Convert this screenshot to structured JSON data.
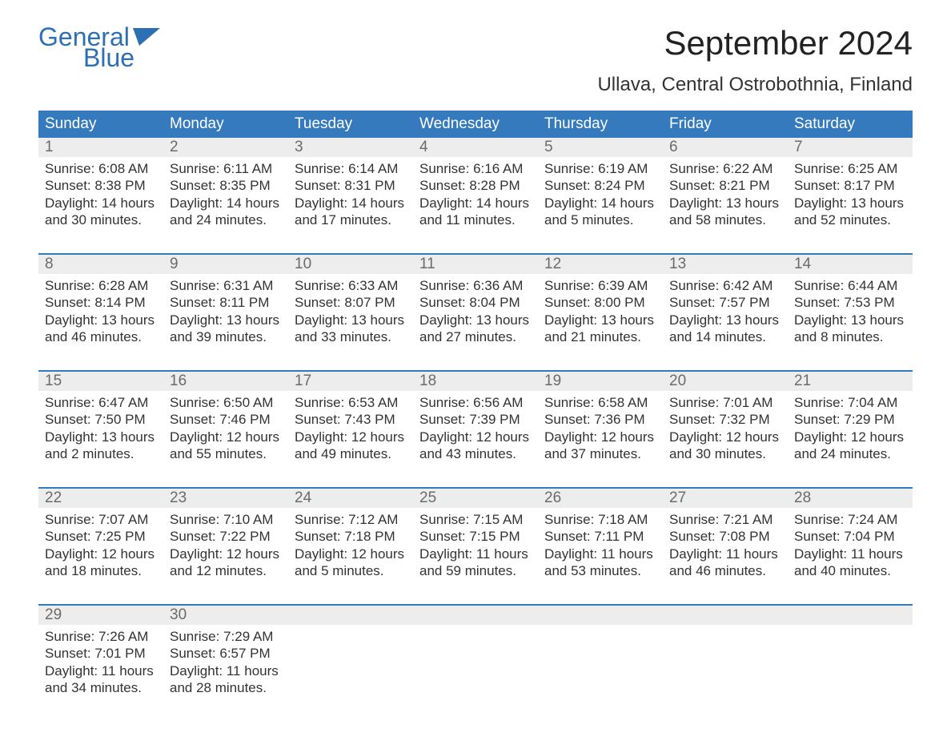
{
  "logo": {
    "word1": "General",
    "word2": "Blue"
  },
  "title": "September 2024",
  "location": "Ullava, Central Ostrobothnia, Finland",
  "colors": {
    "header_bg": "#357abd",
    "header_text": "#ffffff",
    "daynum_bg": "#ededed",
    "daynum_text": "#6b6b6b",
    "body_text": "#333333",
    "rule": "#357abd",
    "logo": "#2d6fb5"
  },
  "weekdays": [
    "Sunday",
    "Monday",
    "Tuesday",
    "Wednesday",
    "Thursday",
    "Friday",
    "Saturday"
  ],
  "weeks": [
    [
      {
        "n": "1",
        "sr": "6:08 AM",
        "ss": "8:38 PM",
        "dl": "14 hours and 30 minutes."
      },
      {
        "n": "2",
        "sr": "6:11 AM",
        "ss": "8:35 PM",
        "dl": "14 hours and 24 minutes."
      },
      {
        "n": "3",
        "sr": "6:14 AM",
        "ss": "8:31 PM",
        "dl": "14 hours and 17 minutes."
      },
      {
        "n": "4",
        "sr": "6:16 AM",
        "ss": "8:28 PM",
        "dl": "14 hours and 11 minutes."
      },
      {
        "n": "5",
        "sr": "6:19 AM",
        "ss": "8:24 PM",
        "dl": "14 hours and 5 minutes."
      },
      {
        "n": "6",
        "sr": "6:22 AM",
        "ss": "8:21 PM",
        "dl": "13 hours and 58 minutes."
      },
      {
        "n": "7",
        "sr": "6:25 AM",
        "ss": "8:17 PM",
        "dl": "13 hours and 52 minutes."
      }
    ],
    [
      {
        "n": "8",
        "sr": "6:28 AM",
        "ss": "8:14 PM",
        "dl": "13 hours and 46 minutes."
      },
      {
        "n": "9",
        "sr": "6:31 AM",
        "ss": "8:11 PM",
        "dl": "13 hours and 39 minutes."
      },
      {
        "n": "10",
        "sr": "6:33 AM",
        "ss": "8:07 PM",
        "dl": "13 hours and 33 minutes."
      },
      {
        "n": "11",
        "sr": "6:36 AM",
        "ss": "8:04 PM",
        "dl": "13 hours and 27 minutes."
      },
      {
        "n": "12",
        "sr": "6:39 AM",
        "ss": "8:00 PM",
        "dl": "13 hours and 21 minutes."
      },
      {
        "n": "13",
        "sr": "6:42 AM",
        "ss": "7:57 PM",
        "dl": "13 hours and 14 minutes."
      },
      {
        "n": "14",
        "sr": "6:44 AM",
        "ss": "7:53 PM",
        "dl": "13 hours and 8 minutes."
      }
    ],
    [
      {
        "n": "15",
        "sr": "6:47 AM",
        "ss": "7:50 PM",
        "dl": "13 hours and 2 minutes."
      },
      {
        "n": "16",
        "sr": "6:50 AM",
        "ss": "7:46 PM",
        "dl": "12 hours and 55 minutes."
      },
      {
        "n": "17",
        "sr": "6:53 AM",
        "ss": "7:43 PM",
        "dl": "12 hours and 49 minutes."
      },
      {
        "n": "18",
        "sr": "6:56 AM",
        "ss": "7:39 PM",
        "dl": "12 hours and 43 minutes."
      },
      {
        "n": "19",
        "sr": "6:58 AM",
        "ss": "7:36 PM",
        "dl": "12 hours and 37 minutes."
      },
      {
        "n": "20",
        "sr": "7:01 AM",
        "ss": "7:32 PM",
        "dl": "12 hours and 30 minutes."
      },
      {
        "n": "21",
        "sr": "7:04 AM",
        "ss": "7:29 PM",
        "dl": "12 hours and 24 minutes."
      }
    ],
    [
      {
        "n": "22",
        "sr": "7:07 AM",
        "ss": "7:25 PM",
        "dl": "12 hours and 18 minutes."
      },
      {
        "n": "23",
        "sr": "7:10 AM",
        "ss": "7:22 PM",
        "dl": "12 hours and 12 minutes."
      },
      {
        "n": "24",
        "sr": "7:12 AM",
        "ss": "7:18 PM",
        "dl": "12 hours and 5 minutes."
      },
      {
        "n": "25",
        "sr": "7:15 AM",
        "ss": "7:15 PM",
        "dl": "11 hours and 59 minutes."
      },
      {
        "n": "26",
        "sr": "7:18 AM",
        "ss": "7:11 PM",
        "dl": "11 hours and 53 minutes."
      },
      {
        "n": "27",
        "sr": "7:21 AM",
        "ss": "7:08 PM",
        "dl": "11 hours and 46 minutes."
      },
      {
        "n": "28",
        "sr": "7:24 AM",
        "ss": "7:04 PM",
        "dl": "11 hours and 40 minutes."
      }
    ],
    [
      {
        "n": "29",
        "sr": "7:26 AM",
        "ss": "7:01 PM",
        "dl": "11 hours and 34 minutes."
      },
      {
        "n": "30",
        "sr": "7:29 AM",
        "ss": "6:57 PM",
        "dl": "11 hours and 28 minutes."
      },
      null,
      null,
      null,
      null,
      null
    ]
  ],
  "labels": {
    "sunrise": "Sunrise:",
    "sunset": "Sunset:",
    "daylight": "Daylight:"
  }
}
